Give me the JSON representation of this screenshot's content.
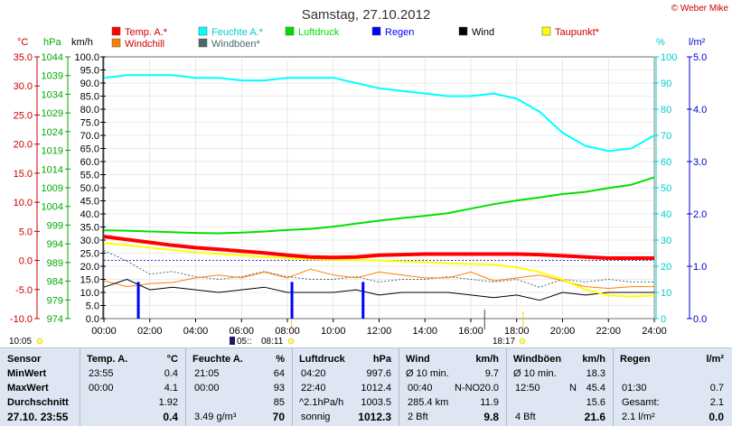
{
  "header": {
    "title": "Samstag, 27.10.2012",
    "copyright": "© Weber Mike"
  },
  "legend": [
    {
      "label": "Temp. A.*",
      "color": "#ff0000"
    },
    {
      "label": "Feuchte A.*",
      "color": "#00ffff"
    },
    {
      "label": "Luftdruck",
      "color": "#00e000"
    },
    {
      "label": "Regen",
      "color": "#0000ff"
    },
    {
      "label": "Wind",
      "color": "#000000"
    },
    {
      "label": "Taupunkt*",
      "color": "#ffff00"
    },
    {
      "label": "Windchill",
      "color": "#ff8000"
    },
    {
      "label": "Windböen*",
      "color": "#4a6a6a"
    }
  ],
  "axes": {
    "unit_temp": "°C",
    "unit_hpa": "hPa",
    "unit_kmh": "km/h",
    "unit_pct": "%",
    "unit_rain": "l/m²",
    "temp_ticks": [
      "35.0",
      "30.0",
      "25.0",
      "20.0",
      "15.0",
      "10.0",
      "5.0",
      "0.0",
      "-5.0",
      "-10.0"
    ],
    "hpa_ticks": [
      "1044",
      "1039",
      "1034",
      "1029",
      "1024",
      "1019",
      "1014",
      "1009",
      "1004",
      "999",
      "994",
      "989",
      "984",
      "979",
      "974"
    ],
    "kmh_ticks": [
      "100.0",
      "95.0",
      "90.0",
      "85.0",
      "80.0",
      "75.0",
      "70.0",
      "65.0",
      "60.0",
      "55.0",
      "50.0",
      "45.0",
      "40.0",
      "35.0",
      "30.0",
      "25.0",
      "20.0",
      "15.0",
      "10.0",
      "5.0",
      "0.0"
    ],
    "pct_ticks": [
      "100",
      "90",
      "80",
      "70",
      "60",
      "50",
      "40",
      "30",
      "20",
      "10",
      "0"
    ],
    "rain_ticks": [
      "5.0",
      "4.0",
      "3.0",
      "2.0",
      "1.0",
      "0.0"
    ],
    "x_ticks": [
      "00:00",
      "02:00",
      "04:00",
      "06:00",
      "08:00",
      "10:00",
      "12:00",
      "14:00",
      "16:00",
      "18:00",
      "20:00",
      "22:00",
      "24:00"
    ]
  },
  "sun": {
    "rise": "08:11",
    "set": "18:17",
    "daylength": "10:05",
    "moonrise": "05::"
  },
  "chart_data": {
    "type": "line",
    "title": "Samstag, 27.10.2012",
    "x_unit": "hours",
    "xlim": [
      0,
      24
    ],
    "series": [
      {
        "name": "Temp. A.*",
        "axis": "°C",
        "color": "#ff0000",
        "x": [
          0,
          1,
          2,
          3,
          4,
          5,
          6,
          7,
          8,
          9,
          10,
          11,
          12,
          13,
          14,
          15,
          16,
          17,
          18,
          19,
          20,
          21,
          22,
          23,
          24
        ],
        "y": [
          4.1,
          3.6,
          3.1,
          2.6,
          2.2,
          1.9,
          1.6,
          1.3,
          0.9,
          0.6,
          0.5,
          0.6,
          0.9,
          1.0,
          1.1,
          1.1,
          1.1,
          1.1,
          1.1,
          1.0,
          0.8,
          0.6,
          0.4,
          0.4,
          0.4
        ]
      },
      {
        "name": "Feuchte A.*",
        "axis": "%",
        "color": "#00ffff",
        "x": [
          0,
          1,
          2,
          3,
          4,
          5,
          6,
          7,
          8,
          9,
          10,
          11,
          12,
          13,
          14,
          15,
          16,
          17,
          18,
          19,
          20,
          21,
          22,
          23,
          24
        ],
        "y": [
          92,
          93,
          93,
          93,
          92,
          92,
          91,
          91,
          92,
          92,
          92,
          90,
          88,
          87,
          86,
          85,
          85,
          86,
          84,
          79,
          71,
          66,
          64,
          65,
          70
        ]
      },
      {
        "name": "Luftdruck",
        "axis": "hPa",
        "color": "#00e000",
        "x": [
          0,
          1,
          2,
          3,
          4,
          5,
          6,
          7,
          8,
          9,
          10,
          11,
          12,
          13,
          14,
          15,
          16,
          17,
          18,
          19,
          20,
          21,
          22,
          23,
          24
        ],
        "y": [
          997.6,
          997.5,
          997.3,
          997.1,
          996.9,
          996.8,
          997.0,
          997.3,
          997.7,
          998.0,
          998.6,
          999.4,
          1000.2,
          1000.9,
          1001.5,
          1002.2,
          1003.4,
          1004.6,
          1005.6,
          1006.4,
          1007.3,
          1007.9,
          1008.9,
          1009.8,
          1011.8
        ]
      },
      {
        "name": "Regen",
        "axis": "l/m²",
        "color": "#0000ff",
        "type": "bar",
        "x": [
          1.5,
          8.2,
          11.3
        ],
        "y": [
          0.7,
          0.7,
          0.7
        ]
      },
      {
        "name": "Wind",
        "axis": "km/h",
        "color": "#000000",
        "x": [
          0,
          1,
          2,
          3,
          4,
          5,
          6,
          7,
          8,
          9,
          10,
          11,
          12,
          13,
          14,
          15,
          16,
          17,
          18,
          19,
          20,
          21,
          22,
          23,
          24
        ],
        "y": [
          12,
          15,
          11,
          12,
          11,
          10,
          11,
          12,
          10,
          10,
          10,
          11,
          9,
          10,
          10,
          10,
          9,
          8,
          9,
          7,
          10,
          9,
          10,
          10,
          10
        ]
      },
      {
        "name": "Taupunkt*",
        "axis": "°C",
        "color": "#ffff00",
        "x": [
          0,
          1,
          2,
          3,
          4,
          5,
          6,
          7,
          8,
          9,
          10,
          11,
          12,
          13,
          14,
          15,
          16,
          17,
          18,
          19,
          20,
          21,
          22,
          23,
          24
        ],
        "y": [
          3.0,
          2.6,
          2.2,
          1.8,
          1.4,
          1.1,
          0.9,
          0.6,
          0.4,
          0.2,
          0.1,
          0.1,
          0.0,
          -0.2,
          -0.3,
          -0.5,
          -0.6,
          -0.7,
          -1.2,
          -2.0,
          -3.3,
          -5.0,
          -6.0,
          -6.2,
          -6.0
        ]
      },
      {
        "name": "Windchill",
        "axis": "°C",
        "color": "#ff8000",
        "x": [
          0,
          1,
          2,
          3,
          4,
          5,
          6,
          7,
          8,
          9,
          10,
          11,
          12,
          13,
          14,
          15,
          16,
          17,
          18,
          19,
          20,
          21,
          22,
          23,
          24
        ],
        "y": [
          -3.5,
          -4.5,
          -4.0,
          -3.8,
          -3.0,
          -2.5,
          -3.0,
          -2.0,
          -3.0,
          -1.5,
          -2.5,
          -3.0,
          -2.0,
          -2.5,
          -3.0,
          -3.0,
          -2.0,
          -3.5,
          -3.0,
          -2.5,
          -3.5,
          -4.5,
          -4.8,
          -4.5,
          -4.5
        ]
      },
      {
        "name": "Windböen*",
        "axis": "km/h",
        "color": "#4a6a6a",
        "x": [
          0,
          1,
          2,
          3,
          4,
          5,
          6,
          7,
          8,
          9,
          10,
          11,
          12,
          13,
          14,
          15,
          16,
          17,
          18,
          19,
          20,
          21,
          22,
          23,
          24
        ],
        "y": [
          26,
          22,
          17,
          18,
          16,
          15,
          16,
          18,
          16,
          15,
          15,
          16,
          14,
          15,
          15,
          16,
          15,
          14,
          15,
          12,
          15,
          14,
          15,
          14,
          14
        ]
      }
    ],
    "ylim_temp": [
      -10,
      35
    ],
    "ylim_hpa": [
      974,
      1044
    ],
    "ylim_kmh": [
      0,
      100
    ],
    "ylim_pct": [
      0,
      100
    ],
    "ylim_rain": [
      0,
      5
    ]
  },
  "stats": {
    "sensor": {
      "header": "Sensor",
      "rows": [
        "MinWert",
        "MaxWert",
        "Durchschnitt",
        "27.10. 23:55"
      ]
    },
    "temp": {
      "header": "Temp. A.",
      "unit": "°C",
      "rows": [
        [
          "23:55",
          "0.4"
        ],
        [
          "00:00",
          "4.1"
        ],
        [
          "",
          "1.92"
        ],
        [
          "",
          "0.4"
        ]
      ]
    },
    "feuchte": {
      "header": "Feuchte A.",
      "unit": "%",
      "rows": [
        [
          "21:05",
          "64"
        ],
        [
          "00:00",
          "93"
        ],
        [
          "",
          "85"
        ],
        [
          "3.49 g/m³",
          "70"
        ]
      ]
    },
    "luftdruck": {
      "header": "Luftdruck",
      "unit": "hPa",
      "rows": [
        [
          "04:20",
          "997.6"
        ],
        [
          "22:40",
          "1012.4"
        ],
        [
          "^2.1hPa/h",
          "1003.5"
        ],
        [
          "sonnig",
          "1012.3"
        ]
      ]
    },
    "wind": {
      "header": "Wind",
      "unit": "km/h",
      "rows": [
        [
          "Ø 10 min.",
          "",
          "9.7"
        ],
        [
          "00:40",
          "N-NO",
          "20.0"
        ],
        [
          "285.4 km",
          "",
          "11.9"
        ],
        [
          "2 Bft",
          "",
          "9.8"
        ]
      ]
    },
    "boeen": {
      "header": "Windböen",
      "unit": "km/h",
      "rows": [
        [
          "Ø 10 min.",
          "",
          "18.3"
        ],
        [
          "12:50",
          "N",
          "45.4"
        ],
        [
          "",
          "",
          "15.6"
        ],
        [
          "4 Bft",
          "",
          "21.6"
        ]
      ]
    },
    "regen": {
      "header": "Regen",
      "unit": "l/m²",
      "rows": [
        [
          "",
          ""
        ],
        [
          "01:30",
          "0.7"
        ],
        [
          "Gesamt:",
          "2.1"
        ],
        [
          "2.1 l/m²",
          "0.0"
        ]
      ]
    }
  }
}
